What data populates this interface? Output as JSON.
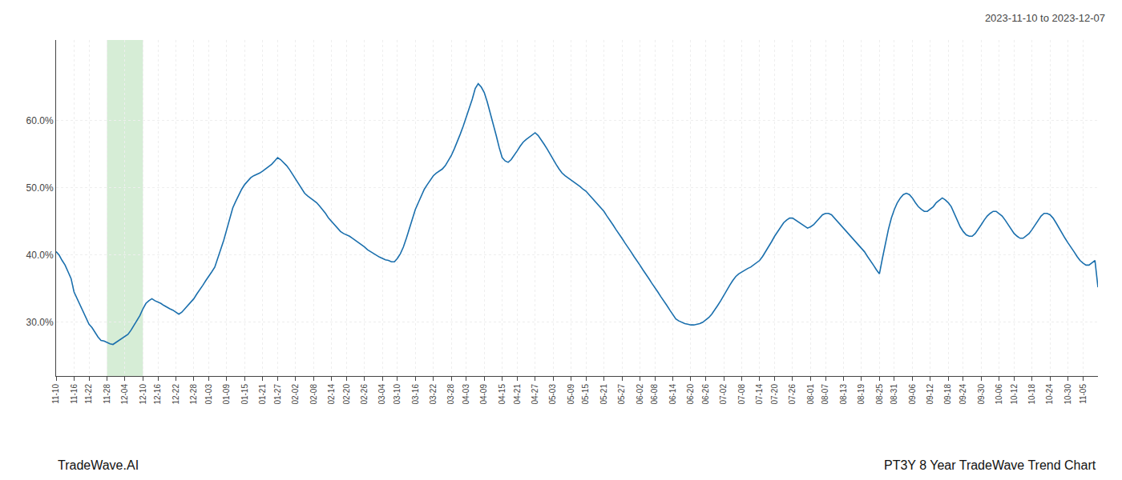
{
  "chart_data": {
    "type": "line",
    "title": "2023-11-10 to 2023-12-07",
    "annotations": [
      "TradeWave.AI",
      "PT3Y 8 Year TradeWave Trend Chart"
    ],
    "color": "#1a6fad",
    "grid": true,
    "shade": {
      "from": "11-28",
      "to": "12-10",
      "color": "#d6edd6"
    },
    "ylim": [
      0.22,
      0.72
    ],
    "yticks": [
      {
        "value": 0.3,
        "label": "30.0%"
      },
      {
        "value": 0.4,
        "label": "40.0%"
      },
      {
        "value": 0.5,
        "label": "50.0%"
      },
      {
        "value": 0.6,
        "label": "60.0%"
      }
    ],
    "categories": [
      "11-10",
      null,
      null,
      null,
      null,
      null,
      "11-16",
      null,
      null,
      null,
      null,
      "11-22",
      null,
      null,
      null,
      null,
      null,
      "11-28",
      null,
      null,
      null,
      null,
      null,
      "12-04",
      null,
      null,
      null,
      null,
      null,
      "12-10",
      null,
      null,
      null,
      null,
      "12-16",
      null,
      null,
      null,
      null,
      null,
      "12-22",
      null,
      null,
      null,
      null,
      null,
      "12-28",
      null,
      null,
      null,
      null,
      "01-03",
      null,
      null,
      null,
      null,
      null,
      "01-09",
      null,
      null,
      null,
      null,
      null,
      "01-15",
      null,
      null,
      null,
      null,
      null,
      "01-21",
      null,
      null,
      null,
      null,
      "01-27",
      null,
      null,
      null,
      null,
      null,
      "02-02",
      null,
      null,
      null,
      null,
      null,
      "02-08",
      null,
      null,
      null,
      null,
      null,
      "02-14",
      null,
      null,
      null,
      null,
      "02-20",
      null,
      null,
      null,
      null,
      null,
      "02-26",
      null,
      null,
      null,
      null,
      null,
      "03-04",
      null,
      null,
      null,
      null,
      "03-10",
      null,
      null,
      null,
      null,
      null,
      "03-16",
      null,
      null,
      null,
      null,
      null,
      "03-22",
      null,
      null,
      null,
      null,
      null,
      "03-28",
      null,
      null,
      null,
      null,
      "04-03",
      null,
      null,
      null,
      null,
      null,
      "04-09",
      null,
      null,
      null,
      null,
      null,
      "04-15",
      null,
      null,
      null,
      null,
      "04-21",
      null,
      null,
      null,
      null,
      null,
      "04-27",
      null,
      null,
      null,
      null,
      null,
      "05-03",
      null,
      null,
      null,
      null,
      null,
      "05-09",
      null,
      null,
      null,
      null,
      "05-15",
      null,
      null,
      null,
      null,
      null,
      "05-21",
      null,
      null,
      null,
      null,
      null,
      "05-27",
      null,
      null,
      null,
      null,
      null,
      "06-02",
      null,
      null,
      null,
      null,
      "06-08",
      null,
      null,
      null,
      null,
      null,
      "06-14",
      null,
      null,
      null,
      null,
      null,
      "06-20",
      null,
      null,
      null,
      null,
      "06-26",
      null,
      null,
      null,
      null,
      null,
      "07-02",
      null,
      null,
      null,
      null,
      null,
      "07-08",
      null,
      null,
      null,
      null,
      null,
      "07-14",
      null,
      null,
      null,
      null,
      "07-20",
      null,
      null,
      null,
      null,
      null,
      "07-26",
      null,
      null,
      null,
      null,
      null,
      "08-01",
      null,
      null,
      null,
      null,
      "08-07",
      null,
      null,
      null,
      null,
      null,
      "08-13",
      null,
      null,
      null,
      null,
      null,
      "08-19",
      null,
      null,
      null,
      null,
      null,
      "08-25",
      null,
      null,
      null,
      null,
      "08-31",
      null,
      null,
      null,
      null,
      null,
      "09-06",
      null,
      null,
      null,
      null,
      null,
      "09-12",
      null,
      null,
      null,
      null,
      null,
      "09-18",
      null,
      null,
      null,
      null,
      "09-24",
      null,
      null,
      null,
      null,
      null,
      "09-30",
      null,
      null,
      null,
      null,
      null,
      "10-06",
      null,
      null,
      null,
      null,
      "10-12",
      null,
      null,
      null,
      null,
      null,
      "10-18",
      null,
      null,
      null,
      null,
      null,
      "10-24",
      null,
      null,
      null,
      null,
      null,
      "10-30",
      null,
      null,
      null,
      null,
      "11-05",
      null,
      null,
      null,
      null,
      null
    ],
    "values": [
      0.405,
      0.4,
      0.392,
      0.385,
      0.375,
      0.365,
      0.345,
      0.335,
      0.325,
      0.315,
      0.305,
      0.297,
      0.292,
      0.285,
      0.278,
      0.273,
      0.272,
      0.27,
      0.268,
      0.267,
      0.27,
      0.272,
      0.275,
      0.278,
      0.282,
      0.288,
      0.295,
      0.302,
      0.31,
      0.32,
      0.328,
      0.332,
      0.335,
      0.332,
      0.33,
      0.328,
      0.325,
      0.322,
      0.32,
      0.318,
      0.315,
      0.312,
      0.315,
      0.32,
      0.325,
      0.33,
      0.335,
      0.342,
      0.348,
      0.355,
      0.362,
      0.368,
      0.375,
      0.382,
      0.395,
      0.408,
      0.422,
      0.438,
      0.455,
      0.47,
      0.48,
      0.49,
      0.498,
      0.505,
      0.51,
      0.515,
      0.518,
      0.52,
      0.522,
      0.525,
      0.528,
      0.532,
      0.535,
      0.54,
      0.545,
      0.542,
      0.538,
      0.533,
      0.527,
      0.52,
      0.512,
      0.505,
      0.498,
      0.492,
      0.488,
      0.485,
      0.482,
      0.478,
      0.473,
      0.468,
      0.462,
      0.455,
      0.45,
      0.445,
      0.44,
      0.435,
      0.432,
      0.43,
      0.428,
      0.425,
      0.422,
      0.418,
      0.415,
      0.412,
      0.408,
      0.405,
      0.402,
      0.4,
      0.397,
      0.395,
      0.393,
      0.392,
      0.39,
      0.39,
      0.395,
      0.402,
      0.412,
      0.425,
      0.44,
      0.455,
      0.468,
      0.478,
      0.488,
      0.498,
      0.505,
      0.512,
      0.518,
      0.522,
      0.525,
      0.528,
      0.533,
      0.54,
      0.548,
      0.558,
      0.568,
      0.58,
      0.592,
      0.605,
      0.618,
      0.632,
      0.648,
      0.655,
      0.65,
      0.642,
      0.628,
      0.612,
      0.595,
      0.578,
      0.56,
      0.545,
      0.54,
      0.538,
      0.542,
      0.548,
      0.555,
      0.562,
      0.568,
      0.572,
      0.575,
      0.578,
      0.582,
      0.578,
      0.572,
      0.565,
      0.558,
      0.55,
      0.542,
      0.535,
      0.528,
      0.522,
      0.518,
      0.515,
      0.512,
      0.508,
      0.505,
      0.502,
      0.498,
      0.495,
      0.49,
      0.485,
      0.48,
      0.475,
      0.47,
      0.465,
      0.458,
      0.452,
      0.445,
      0.438,
      0.432,
      0.425,
      0.418,
      0.412,
      0.405,
      0.398,
      0.392,
      0.385,
      0.378,
      0.372,
      0.365,
      0.358,
      0.352,
      0.345,
      0.338,
      0.332,
      0.325,
      0.318,
      0.312,
      0.305,
      0.302,
      0.3,
      0.298,
      0.297,
      0.296,
      0.296,
      0.297,
      0.298,
      0.3,
      0.303,
      0.307,
      0.312,
      0.318,
      0.325,
      0.332,
      0.34,
      0.348,
      0.355,
      0.362,
      0.368,
      0.372,
      0.375,
      0.378,
      0.38,
      0.382,
      0.385,
      0.388,
      0.392,
      0.398,
      0.405,
      0.412,
      0.42,
      0.428,
      0.435,
      0.442,
      0.448,
      0.452,
      0.455,
      0.455,
      0.452,
      0.448,
      0.445,
      0.442,
      0.44,
      0.442,
      0.445,
      0.45,
      0.455,
      0.46,
      0.462,
      0.462,
      0.46,
      0.455,
      0.45,
      0.445,
      0.44,
      0.435,
      0.43,
      0.425,
      0.42,
      0.415,
      0.41,
      0.405,
      0.398,
      0.392,
      0.385,
      0.378,
      0.372,
      0.395,
      0.418,
      0.438,
      0.455,
      0.468,
      0.478,
      0.485,
      0.49,
      0.492,
      0.49,
      0.485,
      0.478,
      0.472,
      0.468,
      0.465,
      0.465,
      0.468,
      0.472,
      0.478,
      0.482,
      0.485,
      0.482,
      0.478,
      0.472,
      0.462,
      0.452,
      0.442,
      0.435,
      0.43,
      0.428,
      0.428,
      0.432,
      0.438,
      0.445,
      0.452,
      0.458,
      0.462,
      0.465,
      0.465,
      0.462,
      0.458,
      0.452,
      0.445,
      0.438,
      0.432,
      0.428,
      0.425,
      0.425,
      0.428,
      0.432,
      0.438,
      0.445,
      0.452,
      0.458,
      0.462,
      0.462,
      0.46,
      0.455,
      0.448,
      0.44,
      0.432,
      0.425,
      0.418,
      0.412,
      0.405,
      0.398,
      0.392,
      0.388,
      0.385,
      0.385,
      0.388,
      0.392,
      0.352
    ]
  }
}
